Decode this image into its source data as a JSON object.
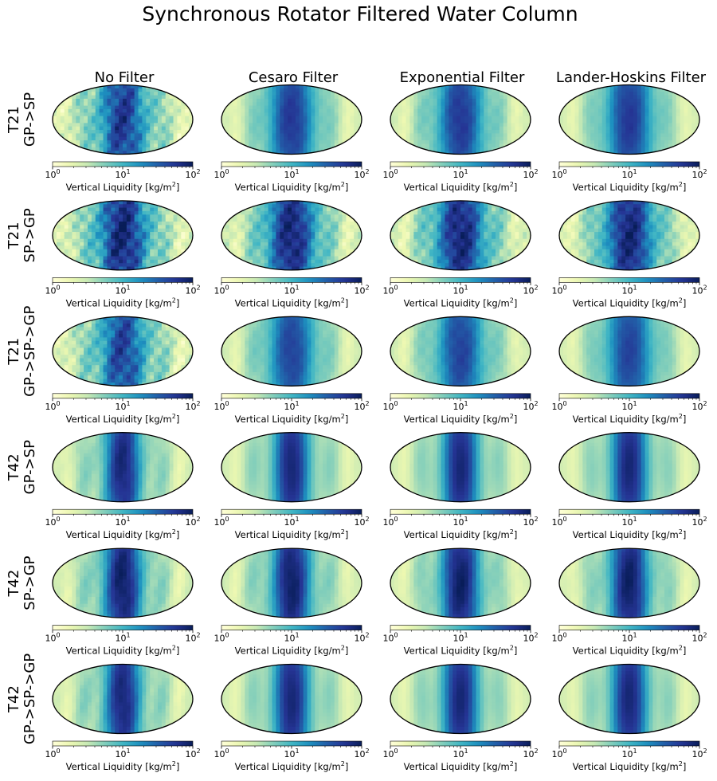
{
  "chart_data": {
    "type": "heatmap",
    "projection": "mollweide",
    "title": "Synchronous Rotator Filtered Water Column",
    "columns": [
      "No Filter",
      "Cesaro Filter",
      "Exponential Filter",
      "Lander-Hoskins Filter"
    ],
    "rows": [
      {
        "resolution": "T21",
        "transform": "GP->SP",
        "texture": 0.8,
        "core": 0.9,
        "spread": 1.0,
        "ringing": [
          1.0,
          0.2,
          0.25,
          0.15
        ]
      },
      {
        "resolution": "T21",
        "transform": "SP->GP",
        "texture": 1.0,
        "core": 1.0,
        "spread": 1.05,
        "ringing": [
          1.0,
          0.7,
          0.7,
          0.65
        ]
      },
      {
        "resolution": "T21",
        "transform": "GP->SP->GP",
        "texture": 0.8,
        "core": 0.85,
        "spread": 1.0,
        "ringing": [
          1.0,
          0.2,
          0.25,
          0.15
        ]
      },
      {
        "resolution": "T42",
        "transform": "GP->SP",
        "texture": 0.3,
        "core": 1.0,
        "spread": 0.8,
        "ringing": [
          0.4,
          0.1,
          0.1,
          0.1
        ]
      },
      {
        "resolution": "T42",
        "transform": "SP->GP",
        "texture": 0.35,
        "core": 1.05,
        "spread": 0.85,
        "ringing": [
          0.5,
          0.3,
          0.3,
          0.3
        ]
      },
      {
        "resolution": "T42",
        "transform": "GP->SP->GP",
        "texture": 0.3,
        "core": 1.0,
        "spread": 0.8,
        "ringing": [
          0.4,
          0.1,
          0.1,
          0.1
        ]
      }
    ],
    "colorbar": {
      "label_prefix": "Vertical Liquidity [kg/m",
      "label_exp": "2",
      "label_suffix": "]",
      "scale": "log",
      "vmin": 1,
      "vmax": 100,
      "ticks": [
        {
          "base": "10",
          "exp": "0"
        },
        {
          "base": "10",
          "exp": "1"
        },
        {
          "base": "10",
          "exp": "2"
        }
      ],
      "colormap": "YlGnBu",
      "colormap_stops": [
        "#ffffd9",
        "#edf8b1",
        "#c7e9b4",
        "#7fcdbb",
        "#41b6c4",
        "#1d91c0",
        "#225ea8",
        "#253494",
        "#081d58"
      ]
    }
  }
}
